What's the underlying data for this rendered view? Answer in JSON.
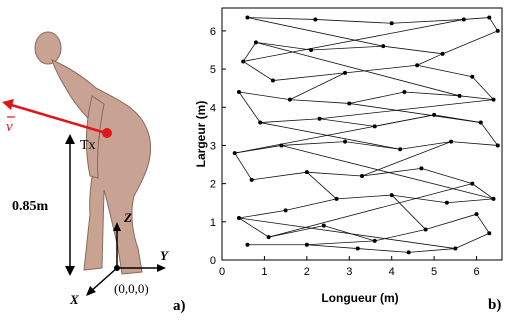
{
  "panel_a": {
    "velocity_label": "v",
    "tx_label": "Tx",
    "height_label": "0.85m",
    "axis_z": "Z",
    "axis_y": "Y",
    "axis_x": "X",
    "origin_label": "(0,0,0)",
    "panel_tag": "a)",
    "colors": {
      "velocity": "#e0161b",
      "skin": "#c8a293",
      "axes": "#000000"
    }
  },
  "panel_b": {
    "panel_tag": "b)",
    "chart_data": {
      "type": "scatter",
      "xlabel": "Longueur (m)",
      "ylabel": "Largeur (m)",
      "xlim": [
        0,
        6.6
      ],
      "ylim": [
        0,
        6.6
      ],
      "xticks": [
        "0",
        "1",
        "2",
        "3",
        "4",
        "5",
        "6"
      ],
      "yticks": [
        "0",
        "1",
        "2",
        "3",
        "4",
        "5",
        "6"
      ],
      "grid": false,
      "connected_path": true,
      "points": [
        [
          0.6,
          6.35
        ],
        [
          2.2,
          6.3
        ],
        [
          4.0,
          6.2
        ],
        [
          5.7,
          6.3
        ],
        [
          6.3,
          6.35
        ],
        [
          6.5,
          6.0
        ],
        [
          5.2,
          5.4
        ],
        [
          3.8,
          5.6
        ],
        [
          2.1,
          5.5
        ],
        [
          0.8,
          5.7
        ],
        [
          0.5,
          5.2
        ],
        [
          1.2,
          4.7
        ],
        [
          2.9,
          4.9
        ],
        [
          4.6,
          5.1
        ],
        [
          5.9,
          4.8
        ],
        [
          6.4,
          4.2
        ],
        [
          5.6,
          4.3
        ],
        [
          4.3,
          4.4
        ],
        [
          3.0,
          4.1
        ],
        [
          1.6,
          4.2
        ],
        [
          0.4,
          4.4
        ],
        [
          0.9,
          3.6
        ],
        [
          2.3,
          3.7
        ],
        [
          3.6,
          3.5
        ],
        [
          5.0,
          3.8
        ],
        [
          6.1,
          3.6
        ],
        [
          6.5,
          3.0
        ],
        [
          5.4,
          3.1
        ],
        [
          4.2,
          2.9
        ],
        [
          2.9,
          3.1
        ],
        [
          1.4,
          3.0
        ],
        [
          0.3,
          2.8
        ],
        [
          0.7,
          2.1
        ],
        [
          2.0,
          2.3
        ],
        [
          3.3,
          2.2
        ],
        [
          4.7,
          2.4
        ],
        [
          5.9,
          2.0
        ],
        [
          6.4,
          1.6
        ],
        [
          5.3,
          1.5
        ],
        [
          4.0,
          1.7
        ],
        [
          2.7,
          1.6
        ],
        [
          1.5,
          1.3
        ],
        [
          0.4,
          1.1
        ],
        [
          1.1,
          0.6
        ],
        [
          2.4,
          0.9
        ],
        [
          3.6,
          0.5
        ],
        [
          4.8,
          0.8
        ],
        [
          6.0,
          1.2
        ],
        [
          6.3,
          0.7
        ],
        [
          5.5,
          0.3
        ],
        [
          4.4,
          0.2
        ],
        [
          3.2,
          0.3
        ],
        [
          2.0,
          0.4
        ],
        [
          0.6,
          0.4
        ]
      ]
    }
  }
}
